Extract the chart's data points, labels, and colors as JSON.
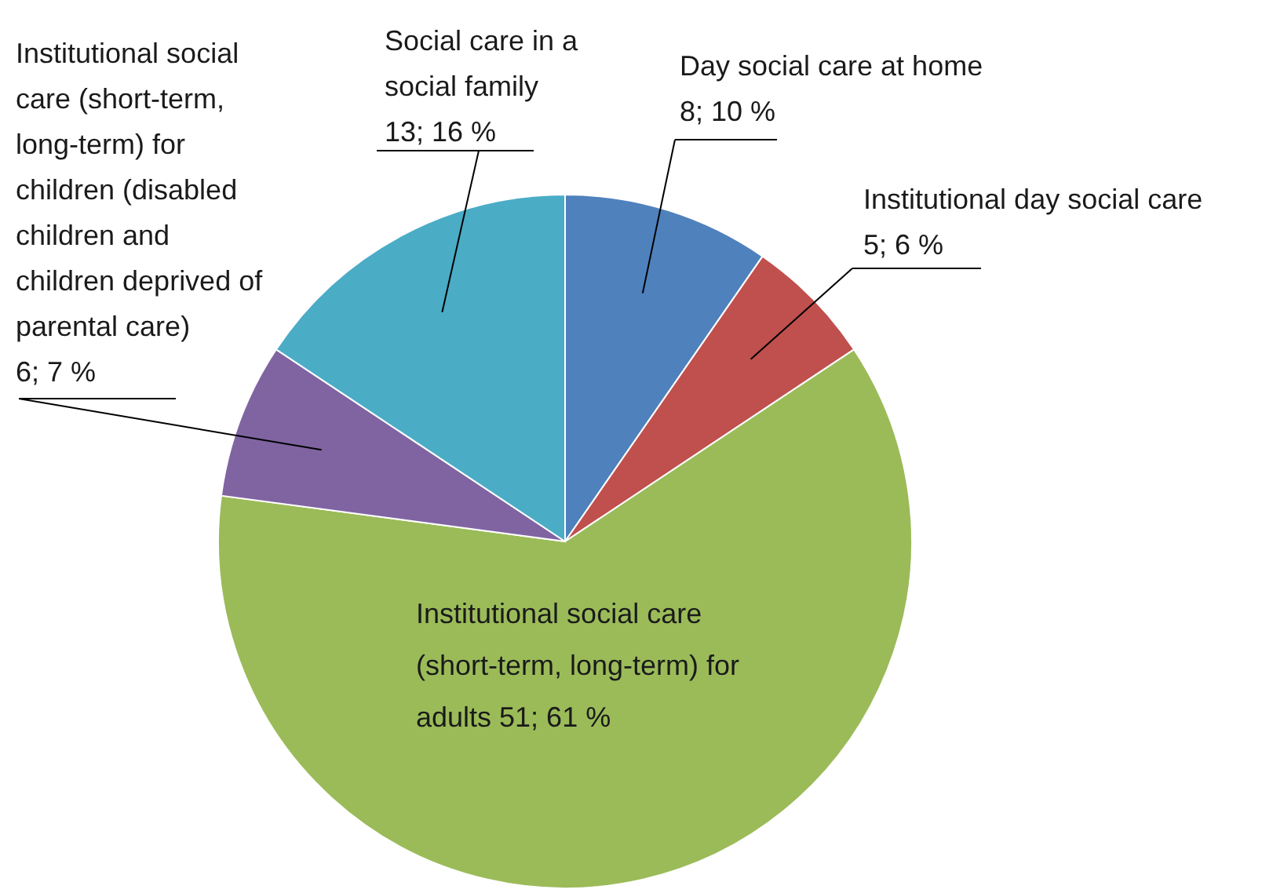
{
  "chart_data": {
    "type": "pie",
    "categories": [
      "Day social care at home",
      "Institutional day social care",
      "Institutional social care (short-term, long-term) for adults",
      "Institutional social care (short-term, long-term) for children (disabled children and children deprived of parental care)",
      "Social care in a social family"
    ],
    "values": [
      8,
      5,
      51,
      6,
      13
    ],
    "colors": [
      "#4f81bd",
      "#c0504d",
      "#9bbb59",
      "#8064a2",
      "#4bacc6"
    ],
    "value_labels": [
      "8; 10 %",
      "5; 6 %",
      "51; 61 %",
      "6; 7 %",
      "13; 16 %"
    ]
  }
}
